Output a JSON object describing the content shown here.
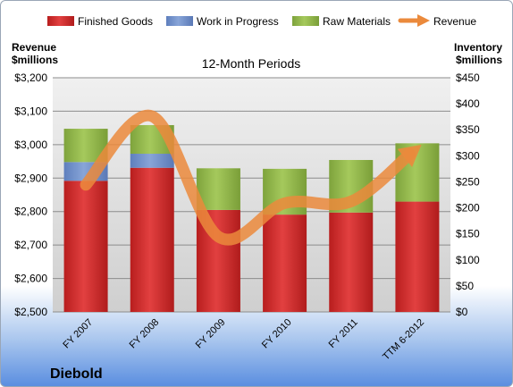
{
  "chart_data": {
    "type": "bar",
    "title": "12-Month Periods",
    "company": "Diebold",
    "categories": [
      "FY 2007",
      "FY 2008",
      "FY 2009",
      "FY 2010",
      "FY 2011",
      "TTM 6-2012"
    ],
    "legend_position": "top",
    "grid": true,
    "y_left": {
      "label_line1": "Revenue",
      "label_line2": "$millions",
      "min": 2500,
      "max": 3200,
      "step": 100,
      "ticks": [
        "$2,500",
        "$2,600",
        "$2,700",
        "$2,800",
        "$2,900",
        "$3,000",
        "$3,100",
        "$3,200"
      ]
    },
    "y_right": {
      "label_line1": "Inventory",
      "label_line2": "$millions",
      "min": 0,
      "max": 450,
      "step": 50,
      "ticks": [
        "$0",
        "$50",
        "$100",
        "$150",
        "$200",
        "$250",
        "$300",
        "$350",
        "$400",
        "$450"
      ]
    },
    "series": [
      {
        "name": "Finished Goods",
        "kind": "stacked-bar",
        "axis": "right",
        "color": "#d42d2d",
        "values": [
          252,
          277,
          196,
          187,
          191,
          212
        ]
      },
      {
        "name": "Work in Progress",
        "kind": "stacked-bar",
        "axis": "right",
        "color": "#6f8ec9",
        "values": [
          36,
          27,
          0,
          0,
          0,
          0
        ]
      },
      {
        "name": "Raw Materials",
        "kind": "stacked-bar",
        "axis": "right",
        "color": "#94ba4c",
        "values": [
          64,
          55,
          80,
          88,
          101,
          112
        ]
      },
      {
        "name": "Revenue",
        "kind": "line",
        "axis": "left",
        "color": "#eb8a3c",
        "values": [
          2880,
          3085,
          2725,
          2825,
          2830,
          2990
        ]
      }
    ]
  }
}
